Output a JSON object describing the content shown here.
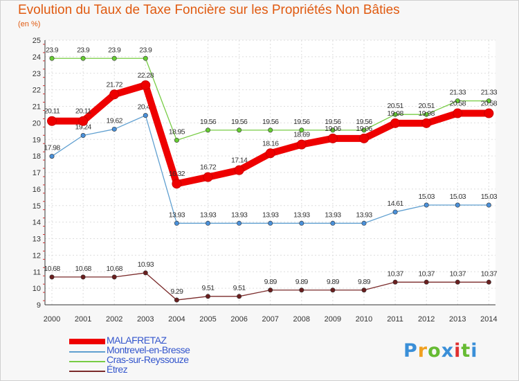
{
  "title": "Evolution du Taux de Taxe Foncière sur les Propriétés Non Bâties",
  "unit_label": "(en %)",
  "logo": {
    "text": "Proxiti",
    "colors": [
      "#3a8fd8",
      "#f0a020",
      "#66bb33",
      "#3a8fd8",
      "#e03030",
      "#66bb33",
      "#3a8fd8"
    ]
  },
  "chart_data": {
    "type": "line",
    "title": "Evolution du Taux de Taxe Foncière sur les Propriétés Non Bâties",
    "xlabel": "",
    "ylabel": "(en %)",
    "ylim": [
      9,
      25
    ],
    "yticks": [
      9,
      10,
      11,
      12,
      13,
      14,
      15,
      16,
      17,
      18,
      19,
      20,
      21,
      22,
      23,
      24,
      25
    ],
    "x": [
      "2000",
      "2001",
      "2002",
      "2003",
      "2004",
      "2005",
      "2006",
      "2007",
      "2008",
      "2009",
      "2010",
      "2011",
      "2012",
      "2013",
      "2014"
    ],
    "grid": true,
    "legend": "bottom-left",
    "series": [
      {
        "name": "Cras-sur-Reyssouze",
        "color": "#77cc44",
        "point_color": "#66cc33",
        "width": "thin",
        "values": [
          23.9,
          23.9,
          23.9,
          23.9,
          18.95,
          19.56,
          19.56,
          19.56,
          19.56,
          19.56,
          19.56,
          20.51,
          20.51,
          21.33,
          21.33
        ],
        "labels": [
          "23.9",
          "23.9",
          "23.9",
          "23.9",
          "18.95",
          "19.56",
          "19.56",
          "19.56",
          "19.56",
          "19.56",
          "19.56",
          "20.51",
          "20.51",
          "21.33",
          "21.33"
        ]
      },
      {
        "name": "Montrevel-en-Bresse",
        "color": "#5f9fd0",
        "point_color": "#4a90d9",
        "width": "thin",
        "values": [
          17.98,
          19.24,
          19.62,
          20.45,
          13.93,
          13.93,
          13.93,
          13.93,
          13.93,
          13.93,
          13.93,
          14.61,
          15.03,
          15.03,
          15.03
        ],
        "labels": [
          "17.98",
          "19.24",
          "19.62",
          "20.45",
          "13.93",
          "13.93",
          "13.93",
          "13.93",
          "13.93",
          "13.93",
          "13.93",
          "14.61",
          "15.03",
          "15.03",
          "15.03"
        ]
      },
      {
        "name": "Étrez",
        "color": "#7a2a2a",
        "point_color": "#6a1f1f",
        "width": "thin",
        "values": [
          10.68,
          10.68,
          10.68,
          10.93,
          9.29,
          9.51,
          9.51,
          9.89,
          9.89,
          9.89,
          9.89,
          10.37,
          10.37,
          10.37,
          10.37
        ],
        "labels": [
          "10.68",
          "10.68",
          "10.68",
          "10.93",
          "9.29",
          "9.51",
          "9.51",
          "9.89",
          "9.89",
          "9.89",
          "9.89",
          "10.37",
          "10.37",
          "10.37",
          "10.37"
        ]
      },
      {
        "name": "MALAFRETAZ",
        "color": "#ee0000",
        "point_color": "#ee0000",
        "width": "thick",
        "values": [
          20.11,
          20.11,
          21.72,
          22.28,
          16.32,
          16.72,
          17.14,
          18.16,
          18.69,
          19.06,
          19.06,
          19.98,
          19.98,
          20.58,
          20.58
        ],
        "labels": [
          "20.11",
          "20.11",
          "21.72",
          "22.28",
          "16.32",
          "16.72",
          "17.14",
          "18.16",
          "18.69",
          "19.06",
          "19.06",
          "19.98",
          "19.98",
          "20.58",
          "20.58"
        ]
      }
    ],
    "legend_order": [
      "MALAFRETAZ",
      "Montrevel-en-Bresse",
      "Cras-sur-Reyssouze",
      "Étrez"
    ]
  }
}
